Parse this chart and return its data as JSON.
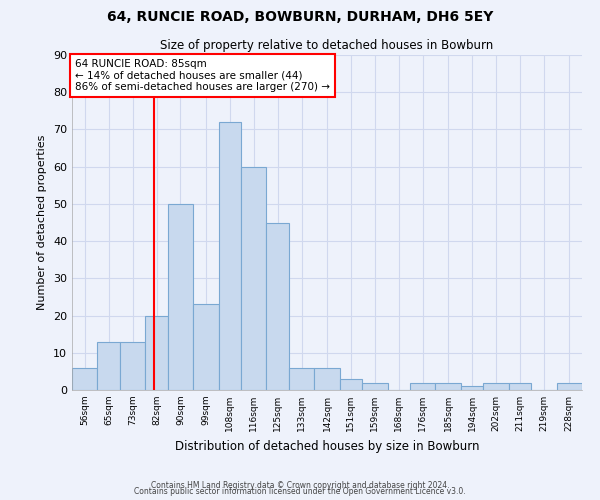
{
  "title": "64, RUNCIE ROAD, BOWBURN, DURHAM, DH6 5EY",
  "subtitle": "Size of property relative to detached houses in Bowburn",
  "xlabel": "Distribution of detached houses by size in Bowburn",
  "ylabel": "Number of detached properties",
  "bar_color": "#c8d9ee",
  "bar_edge_color": "#7aa8d2",
  "background_color": "#eef2fb",
  "grid_color": "#d0d8ee",
  "red_line_x": 85,
  "annotation_line1": "64 RUNCIE ROAD: 85sqm",
  "annotation_line2": "← 14% of detached houses are smaller (44)",
  "annotation_line3": "86% of semi-detached houses are larger (270) →",
  "bins": [
    56,
    65,
    73,
    82,
    90,
    99,
    108,
    116,
    125,
    133,
    142,
    151,
    159,
    168,
    176,
    185,
    194,
    202,
    211,
    219,
    228,
    237
  ],
  "counts": [
    6,
    13,
    13,
    20,
    50,
    23,
    72,
    60,
    45,
    6,
    6,
    3,
    2,
    0,
    2,
    2,
    1,
    2,
    2,
    0,
    2
  ],
  "ylim": [
    0,
    90
  ],
  "yticks": [
    0,
    10,
    20,
    30,
    40,
    50,
    60,
    70,
    80,
    90
  ],
  "footer_line1": "Contains HM Land Registry data © Crown copyright and database right 2024.",
  "footer_line2": "Contains public sector information licensed under the Open Government Licence v3.0."
}
